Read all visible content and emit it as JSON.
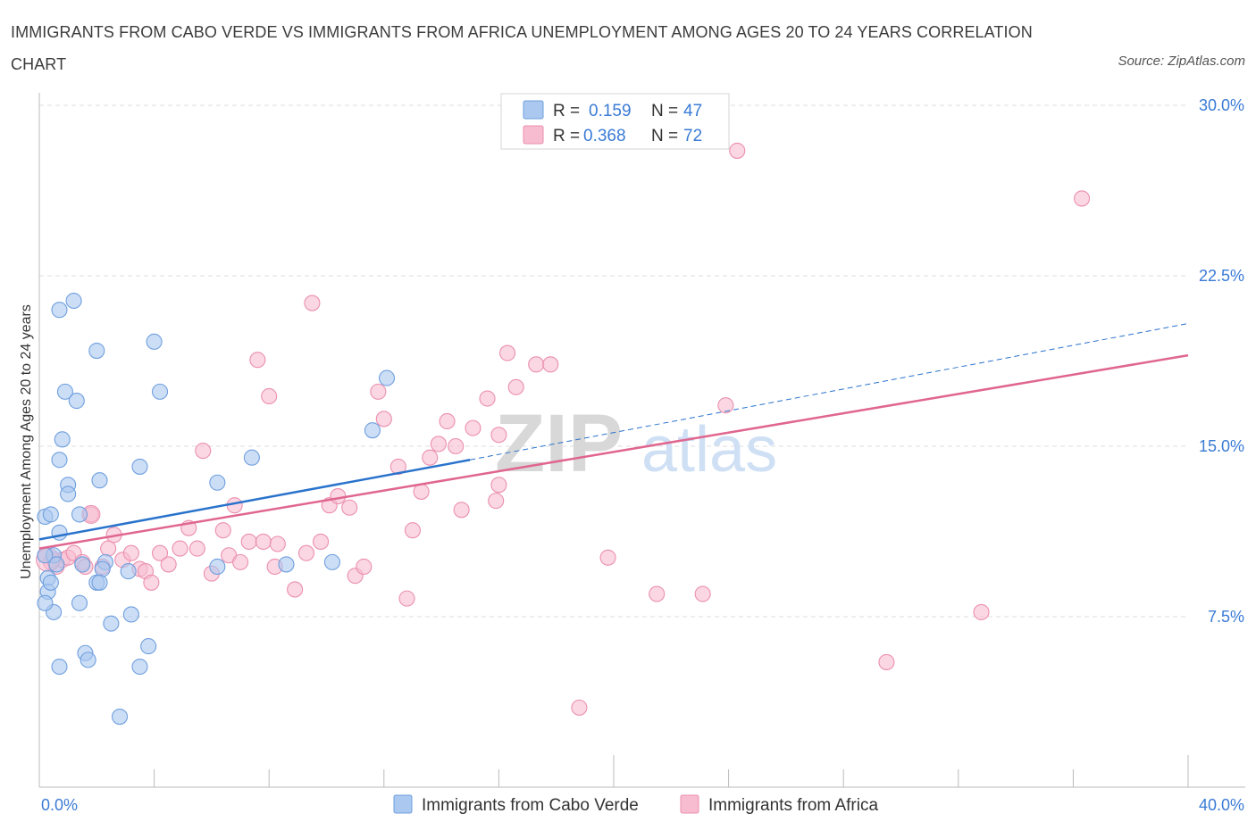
{
  "title": "IMMIGRANTS FROM CABO VERDE VS IMMIGRANTS FROM AFRICA UNEMPLOYMENT AMONG AGES 20 TO 24 YEARS CORRELATION CHART",
  "source": "Source: ZipAtlas.com",
  "watermark": {
    "zip": "ZIP",
    "atlas": "atlas"
  },
  "colors": {
    "blue_fill": "#aac8f0",
    "blue_stroke": "#6f9fde",
    "blue_line": "#2a73cc",
    "pink_fill": "#f7bcd0",
    "pink_stroke": "#eb8fae",
    "pink_line": "#e0668f",
    "tick_text": "#3a7bd5",
    "grid": "#dddddd"
  },
  "legend_top": {
    "blue": {
      "r_label": "R =",
      "r_value": "0.159",
      "n_label": "N =",
      "n_value": "47"
    },
    "pink": {
      "r_label": "R =",
      "r_value": "0.368",
      "n_label": "N =",
      "n_value": "72"
    }
  },
  "chart_data": {
    "type": "scatter",
    "title": "IMMIGRANTS FROM CABO VERDE VS IMMIGRANTS FROM AFRICA UNEMPLOYMENT AMONG AGES 20 TO 24 YEARS CORRELATION CHART",
    "xlabel": "",
    "ylabel": "Unemployment Among Ages 20 to 24 years",
    "xlim": [
      0,
      40
    ],
    "ylim": [
      0,
      30
    ],
    "x_tick_labels": [
      {
        "value": 0,
        "label": "0.0%"
      },
      {
        "value": 40,
        "label": "40.0%"
      }
    ],
    "y_tick_labels": [
      {
        "value": 7.5,
        "label": "7.5%"
      },
      {
        "value": 15,
        "label": "15.0%"
      },
      {
        "value": 22.5,
        "label": "22.5%"
      },
      {
        "value": 30,
        "label": "30.0%"
      }
    ],
    "grid": true,
    "series": [
      {
        "name": "Immigrants from Cabo Verde",
        "color": "blue",
        "R": 0.159,
        "N": 47,
        "trend": {
          "solid": [
            [
              0,
              10.9
            ],
            [
              15,
              14.4
            ]
          ],
          "dashed": [
            [
              15,
              14.4
            ],
            [
              40,
              20.4
            ]
          ]
        },
        "points": [
          [
            0.2,
            11.9
          ],
          [
            0.3,
            9.2
          ],
          [
            0.4,
            12.0
          ],
          [
            0.5,
            10.2
          ],
          [
            0.6,
            9.8
          ],
          [
            0.7,
            11.2
          ],
          [
            0.7,
            21.0
          ],
          [
            0.8,
            15.3
          ],
          [
            0.9,
            17.4
          ],
          [
            1.0,
            13.3
          ],
          [
            1.0,
            12.9
          ],
          [
            1.2,
            21.4
          ],
          [
            1.3,
            17.0
          ],
          [
            1.4,
            12.0
          ],
          [
            0.7,
            14.4
          ],
          [
            1.5,
            9.8
          ],
          [
            1.4,
            8.1
          ],
          [
            1.6,
            5.9
          ],
          [
            1.7,
            5.6
          ],
          [
            0.3,
            8.6
          ],
          [
            0.5,
            7.7
          ],
          [
            0.2,
            8.1
          ],
          [
            0.7,
            5.3
          ],
          [
            2.0,
            19.2
          ],
          [
            2.1,
            13.5
          ],
          [
            2.3,
            9.9
          ],
          [
            2.2,
            9.6
          ],
          [
            2.0,
            9.0
          ],
          [
            2.1,
            9.0
          ],
          [
            2.5,
            7.2
          ],
          [
            3.2,
            7.6
          ],
          [
            2.8,
            3.1
          ],
          [
            3.1,
            9.5
          ],
          [
            3.5,
            14.1
          ],
          [
            3.8,
            6.2
          ],
          [
            3.5,
            5.3
          ],
          [
            4.0,
            19.6
          ],
          [
            4.2,
            17.4
          ],
          [
            6.2,
            13.4
          ],
          [
            6.2,
            9.7
          ],
          [
            7.4,
            14.5
          ],
          [
            8.6,
            9.8
          ],
          [
            10.2,
            9.9
          ],
          [
            11.6,
            15.7
          ],
          [
            12.1,
            18.0
          ],
          [
            0.2,
            10.2
          ],
          [
            0.4,
            9.0
          ]
        ]
      },
      {
        "name": "Immigrants from Africa",
        "color": "pink",
        "R": 0.368,
        "N": 72,
        "trend": {
          "solid": [
            [
              0,
              10.5
            ],
            [
              40,
              19.0
            ]
          ]
        },
        "points": [
          [
            0.2,
            10.2
          ],
          [
            0.4,
            9.9
          ],
          [
            0.5,
            10.0
          ],
          [
            0.6,
            9.7
          ],
          [
            0.8,
            10.0
          ],
          [
            1.0,
            10.1
          ],
          [
            1.2,
            10.3
          ],
          [
            1.5,
            9.9
          ],
          [
            1.6,
            9.7
          ],
          [
            1.8,
            12.0
          ],
          [
            2.2,
            9.7
          ],
          [
            2.4,
            10.5
          ],
          [
            2.6,
            11.1
          ],
          [
            2.9,
            10.0
          ],
          [
            3.2,
            10.3
          ],
          [
            3.5,
            9.6
          ],
          [
            3.7,
            9.5
          ],
          [
            3.9,
            9.0
          ],
          [
            4.2,
            10.3
          ],
          [
            4.5,
            9.8
          ],
          [
            4.9,
            10.5
          ],
          [
            5.2,
            11.4
          ],
          [
            5.5,
            10.5
          ],
          [
            5.7,
            14.8
          ],
          [
            6.0,
            9.4
          ],
          [
            6.4,
            11.3
          ],
          [
            6.6,
            10.2
          ],
          [
            6.8,
            12.4
          ],
          [
            7.0,
            9.9
          ],
          [
            7.3,
            10.8
          ],
          [
            7.6,
            18.8
          ],
          [
            7.8,
            10.8
          ],
          [
            8.0,
            17.2
          ],
          [
            8.2,
            9.7
          ],
          [
            8.3,
            10.7
          ],
          [
            8.9,
            8.7
          ],
          [
            9.3,
            10.3
          ],
          [
            9.5,
            21.3
          ],
          [
            9.8,
            10.8
          ],
          [
            10.1,
            12.4
          ],
          [
            10.4,
            12.8
          ],
          [
            10.8,
            12.3
          ],
          [
            11.0,
            9.3
          ],
          [
            11.3,
            9.7
          ],
          [
            11.8,
            17.4
          ],
          [
            12.0,
            16.2
          ],
          [
            12.5,
            14.1
          ],
          [
            12.8,
            8.3
          ],
          [
            13.0,
            11.3
          ],
          [
            13.3,
            13.0
          ],
          [
            13.6,
            14.5
          ],
          [
            13.9,
            15.1
          ],
          [
            14.2,
            16.1
          ],
          [
            14.5,
            15.0
          ],
          [
            14.7,
            12.2
          ],
          [
            15.1,
            15.8
          ],
          [
            15.6,
            17.1
          ],
          [
            15.9,
            12.6
          ],
          [
            16.0,
            13.3
          ],
          [
            16.0,
            15.5
          ],
          [
            16.3,
            19.1
          ],
          [
            16.6,
            17.6
          ],
          [
            17.3,
            18.6
          ],
          [
            17.8,
            18.6
          ],
          [
            18.8,
            3.5
          ],
          [
            19.8,
            10.1
          ],
          [
            21.5,
            8.5
          ],
          [
            23.1,
            8.5
          ],
          [
            23.9,
            16.8
          ],
          [
            24.3,
            28.0
          ],
          [
            29.5,
            5.5
          ],
          [
            32.8,
            7.7
          ],
          [
            36.3,
            25.9
          ]
        ]
      }
    ]
  },
  "legend_bottom": [
    {
      "label": "Immigrants from Cabo Verde",
      "color": "blue"
    },
    {
      "label": "Immigrants from Africa",
      "color": "pink"
    }
  ]
}
